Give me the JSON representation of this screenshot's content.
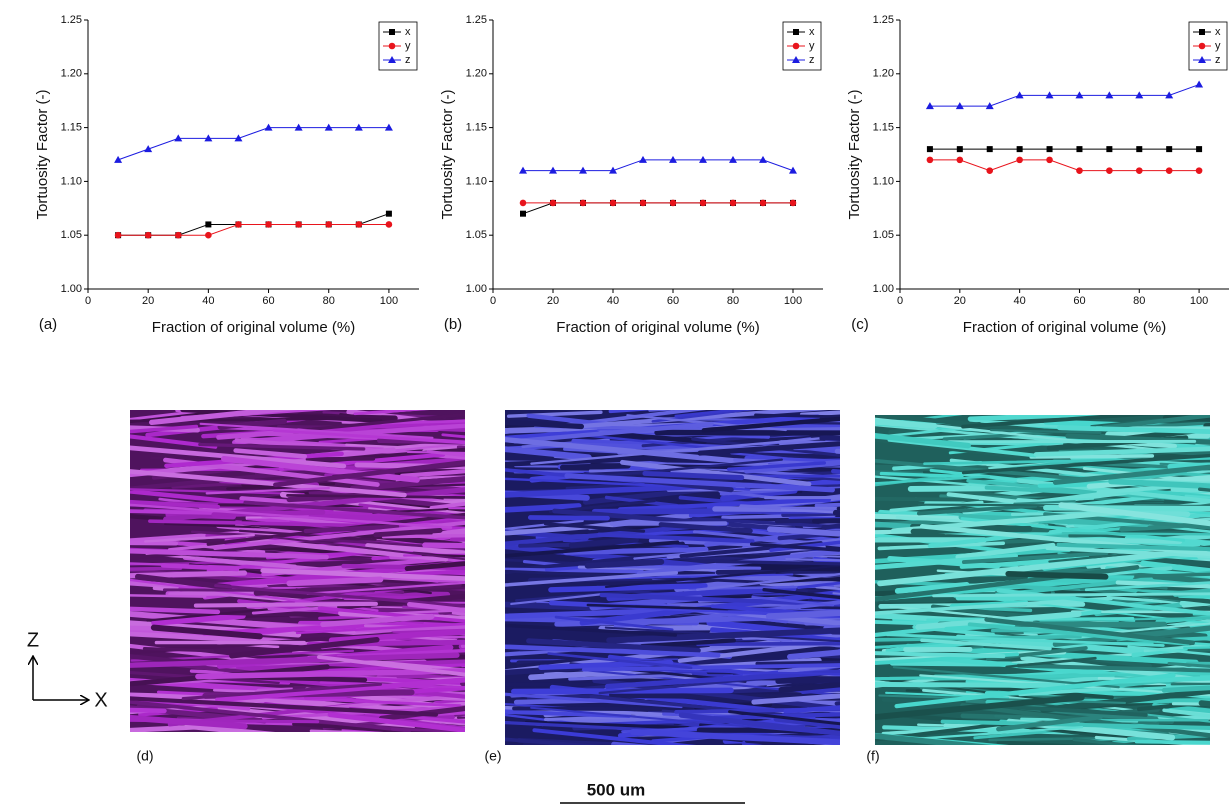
{
  "chart_data": [
    {
      "type": "line",
      "panel_label": "(a)",
      "x_label": "Fraction of original volume (%)",
      "y_label": "Tortuosity Factor (-)",
      "x": [
        10,
        20,
        30,
        40,
        50,
        60,
        70,
        80,
        90,
        100
      ],
      "xlim": [
        0,
        110
      ],
      "xticks": [
        0,
        20,
        40,
        60,
        80,
        100
      ],
      "ylim": [
        1,
        1.25
      ],
      "yticks": [
        {
          "value": 1,
          "label": "1.00"
        },
        {
          "value": 1.05,
          "label": "1.05"
        },
        {
          "value": 1.1,
          "label": "1.10"
        },
        {
          "value": 1.15,
          "label": "1.15"
        },
        {
          "value": 1.2,
          "label": "1.20"
        },
        {
          "value": 1.25,
          "label": "1.25"
        }
      ],
      "legend": "top-right",
      "series": [
        {
          "name": "x",
          "color": "#000000",
          "marker": "square",
          "values": [
            1.05,
            1.05,
            1.05,
            1.06,
            1.06,
            1.06,
            1.06,
            1.06,
            1.06,
            1.07
          ]
        },
        {
          "name": "y",
          "color": "#e8141c",
          "marker": "circle",
          "values": [
            1.05,
            1.05,
            1.05,
            1.05,
            1.06,
            1.06,
            1.06,
            1.06,
            1.06,
            1.06
          ]
        },
        {
          "name": "z",
          "color": "#1c1ce0",
          "marker": "triangle",
          "values": [
            1.12,
            1.13,
            1.14,
            1.14,
            1.14,
            1.15,
            1.15,
            1.15,
            1.15,
            1.15
          ]
        }
      ]
    },
    {
      "type": "line",
      "panel_label": "(b)",
      "x_label": "Fraction of original volume (%)",
      "y_label": "Tortuosity Factor (-)",
      "x": [
        10,
        20,
        30,
        40,
        50,
        60,
        70,
        80,
        90,
        100
      ],
      "xlim": [
        0,
        110
      ],
      "xticks": [
        0,
        20,
        40,
        60,
        80,
        100
      ],
      "ylim": [
        1,
        1.25
      ],
      "yticks": [
        {
          "value": 1,
          "label": "1.00"
        },
        {
          "value": 1.05,
          "label": "1.05"
        },
        {
          "value": 1.1,
          "label": "1.10"
        },
        {
          "value": 1.15,
          "label": "1.15"
        },
        {
          "value": 1.2,
          "label": "1.20"
        },
        {
          "value": 1.25,
          "label": "1.25"
        }
      ],
      "legend": "top-right",
      "series": [
        {
          "name": "x",
          "color": "#000000",
          "marker": "square",
          "values": [
            1.07,
            1.08,
            1.08,
            1.08,
            1.08,
            1.08,
            1.08,
            1.08,
            1.08,
            1.08
          ]
        },
        {
          "name": "y",
          "color": "#e8141c",
          "marker": "circle",
          "values": [
            1.08,
            1.08,
            1.08,
            1.08,
            1.08,
            1.08,
            1.08,
            1.08,
            1.08,
            1.08
          ]
        },
        {
          "name": "z",
          "color": "#1c1ce0",
          "marker": "triangle",
          "values": [
            1.11,
            1.11,
            1.11,
            1.11,
            1.12,
            1.12,
            1.12,
            1.12,
            1.12,
            1.11
          ]
        }
      ]
    },
    {
      "type": "line",
      "panel_label": "(c)",
      "x_label": "Fraction of original volume (%)",
      "y_label": "Tortuosity Factor (-)",
      "x": [
        10,
        20,
        30,
        40,
        50,
        60,
        70,
        80,
        90,
        100
      ],
      "xlim": [
        0,
        110
      ],
      "xticks": [
        0,
        20,
        40,
        60,
        80,
        100
      ],
      "ylim": [
        1,
        1.25
      ],
      "yticks": [
        {
          "value": 1,
          "label": "1.00"
        },
        {
          "value": 1.05,
          "label": "1.05"
        },
        {
          "value": 1.1,
          "label": "1.10"
        },
        {
          "value": 1.15,
          "label": "1.15"
        },
        {
          "value": 1.2,
          "label": "1.20"
        },
        {
          "value": 1.25,
          "label": "1.25"
        }
      ],
      "legend": "top-right",
      "series": [
        {
          "name": "x",
          "color": "#000000",
          "marker": "square",
          "values": [
            1.13,
            1.13,
            1.13,
            1.13,
            1.13,
            1.13,
            1.13,
            1.13,
            1.13,
            1.13
          ]
        },
        {
          "name": "y",
          "color": "#e8141c",
          "marker": "circle",
          "values": [
            1.12,
            1.12,
            1.11,
            1.12,
            1.12,
            1.11,
            1.11,
            1.11,
            1.11,
            1.11
          ]
        },
        {
          "name": "z",
          "color": "#1c1ce0",
          "marker": "triangle",
          "values": [
            1.17,
            1.17,
            1.17,
            1.18,
            1.18,
            1.18,
            1.18,
            1.18,
            1.18,
            1.19
          ]
        }
      ]
    }
  ],
  "images": [
    {
      "label": "(d)",
      "color": "#b02ad0"
    },
    {
      "label": "(e)",
      "color": "#3c3cd8"
    },
    {
      "label": "(f)",
      "color": "#45d6cc"
    }
  ],
  "scale_bar": "500 um",
  "orientation": {
    "vertical": "Z",
    "horizontal": "X"
  }
}
